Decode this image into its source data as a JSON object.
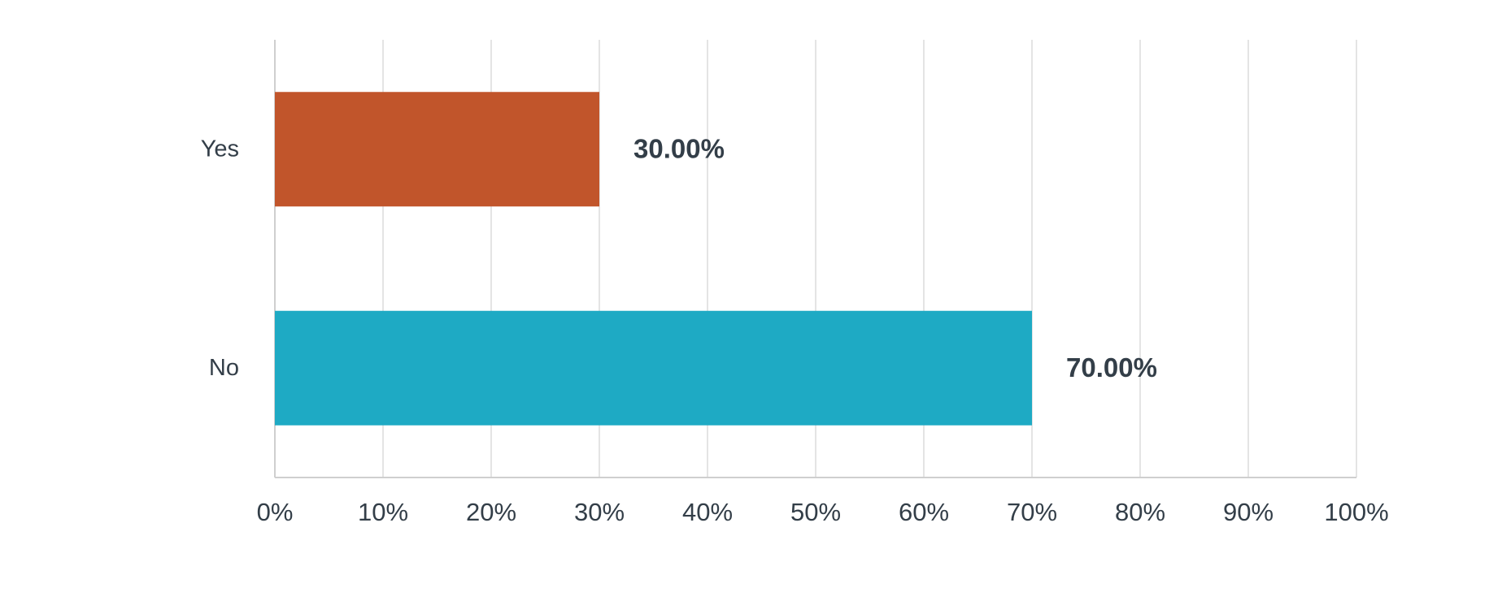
{
  "chart_data": {
    "type": "hbar",
    "categories": [
      "Yes",
      "No"
    ],
    "values": [
      30,
      70
    ],
    "value_labels": [
      "30.00%",
      "70.00%"
    ],
    "colors": [
      "#c1552b",
      "#1eaac4"
    ],
    "xlim": [
      0,
      100
    ],
    "xticks": [
      {
        "value": 0,
        "label": "0%"
      },
      {
        "value": 10,
        "label": "10%"
      },
      {
        "value": 20,
        "label": "20%"
      },
      {
        "value": 30,
        "label": "30%"
      },
      {
        "value": 40,
        "label": "40%"
      },
      {
        "value": 50,
        "label": "50%"
      },
      {
        "value": 60,
        "label": "60%"
      },
      {
        "value": 70,
        "label": "70%"
      },
      {
        "value": 80,
        "label": "80%"
      },
      {
        "value": 90,
        "label": "90%"
      },
      {
        "value": 100,
        "label": "100%"
      }
    ],
    "grid": true
  }
}
